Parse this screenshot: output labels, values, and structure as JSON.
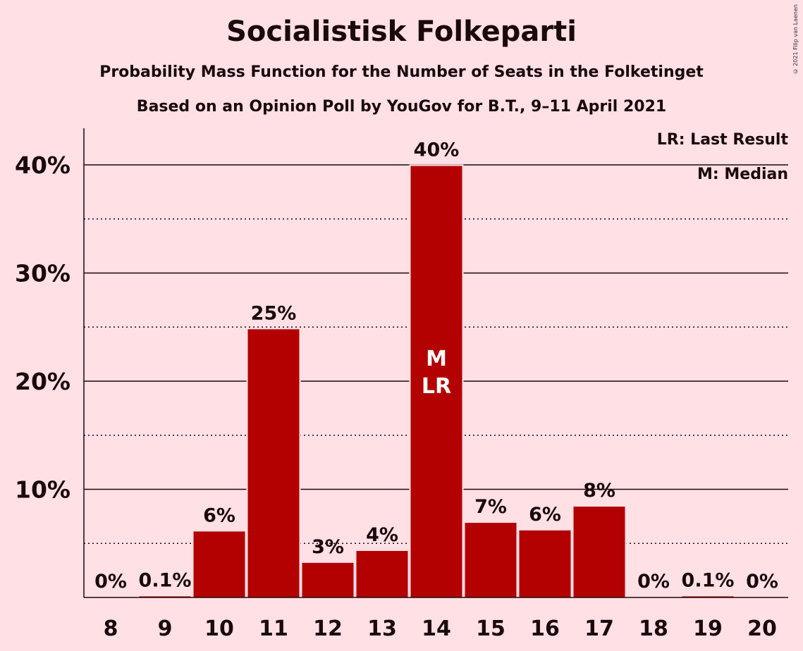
{
  "chart_data": {
    "type": "bar",
    "title": "Socialistisk Folkeparti",
    "subtitle": "Probability Mass Function for the Number of Seats in the Folketinget",
    "subtitle2": "Based on an Opinion Poll by YouGov for B.T., 9–11 April 2021",
    "categories": [
      "8",
      "9",
      "10",
      "11",
      "12",
      "13",
      "14",
      "15",
      "16",
      "17",
      "18",
      "19",
      "20"
    ],
    "values": [
      0,
      0.1,
      6.1,
      24.8,
      3.2,
      4.3,
      39.9,
      6.9,
      6.2,
      8.4,
      0,
      0.1,
      0
    ],
    "value_labels": [
      "0%",
      "0.1%",
      "6%",
      "25%",
      "3%",
      "4%",
      "40%",
      "7%",
      "6%",
      "8%",
      "0%",
      "0.1%",
      "0%"
    ],
    "ylim": [
      0,
      43
    ],
    "yticks": [
      10,
      20,
      30,
      40
    ],
    "ytick_labels": [
      "10%",
      "20%",
      "30%",
      "40%"
    ],
    "minor_gridlines": [
      5,
      15,
      25,
      35
    ],
    "median_seat": "14",
    "last_result_seat": "14",
    "bar_marker_median": "M",
    "bar_marker_last_result": "LR",
    "bar_color": "#B30000",
    "background_color": "#FFE0E5",
    "legend": [
      "LR: Last Result",
      "M: Median"
    ],
    "legend_position": "top-right",
    "copyright": "© 2021 Filip van Laenen"
  }
}
